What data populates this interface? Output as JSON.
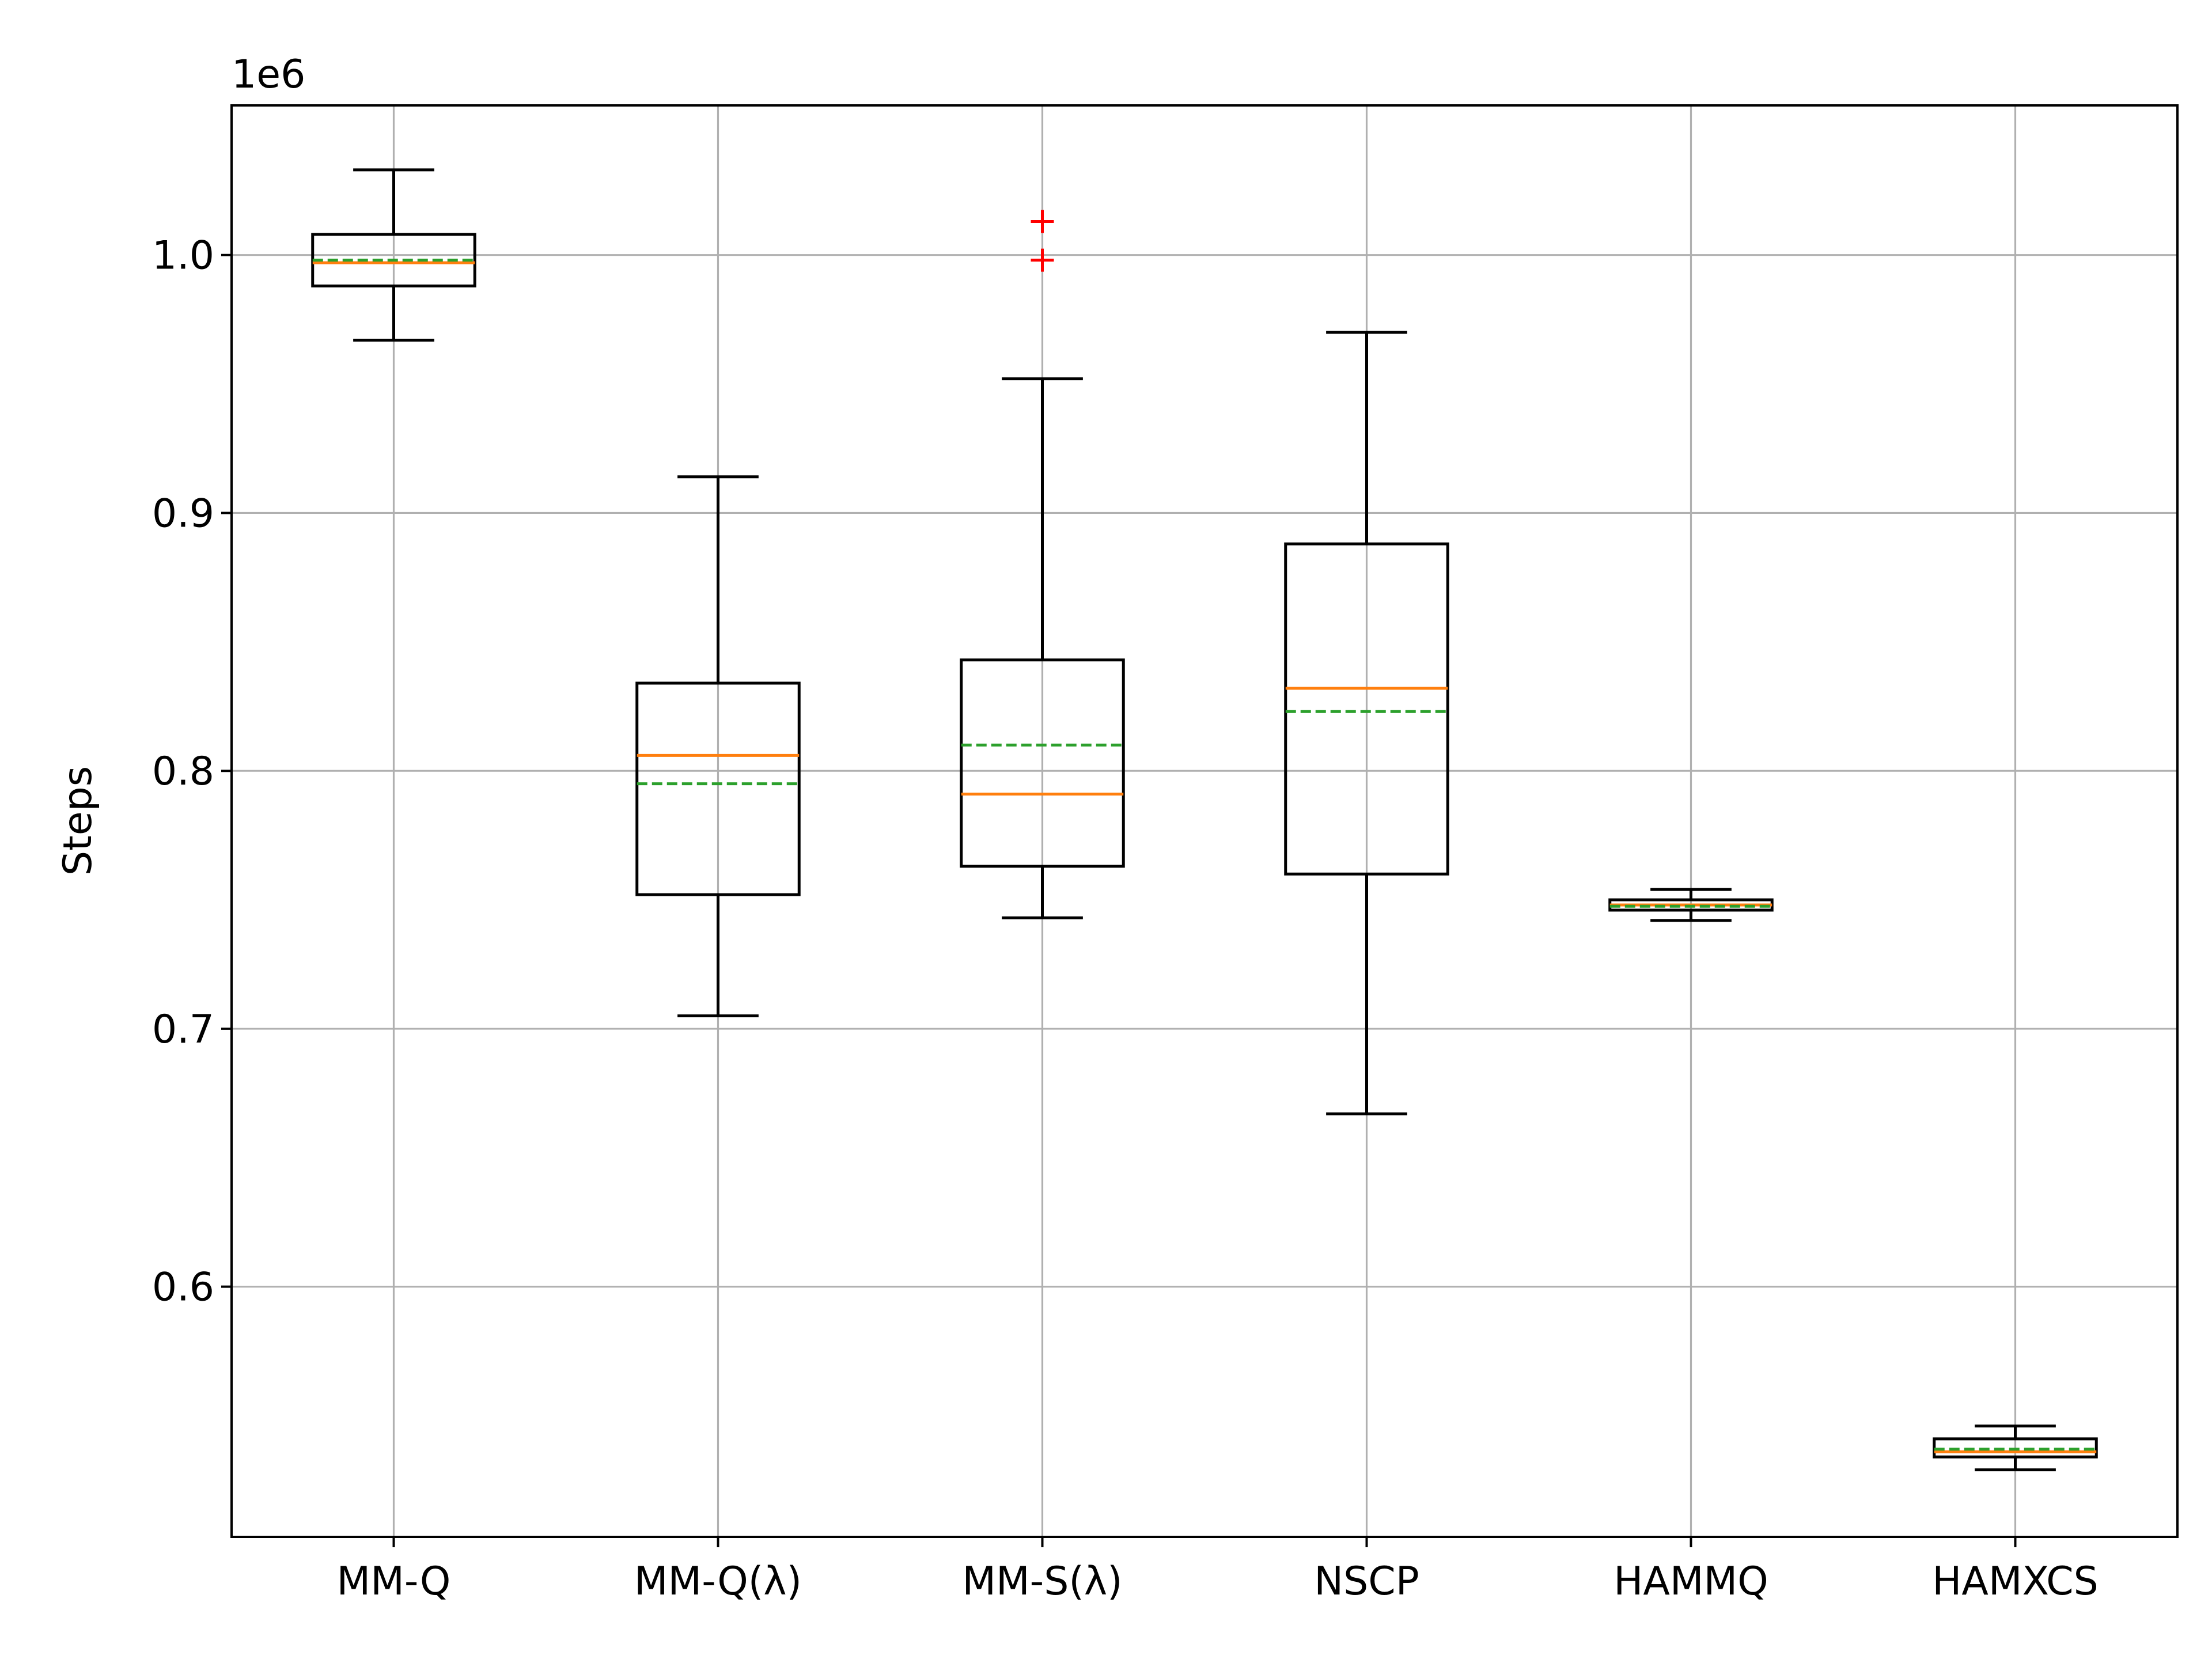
{
  "chart_data": {
    "type": "box",
    "title": "",
    "xlabel": "",
    "ylabel": "Steps",
    "offset_label": "1e6",
    "ylim": [
      503000,
      1058000
    ],
    "yticks": [
      600000,
      700000,
      800000,
      900000,
      1000000
    ],
    "ytick_labels": [
      "0.6",
      "0.7",
      "0.8",
      "0.9",
      "1.0"
    ],
    "grid": true,
    "categories": [
      "MM-Q",
      "MM-Q(λ)",
      "MM-S(λ)",
      "NSCP",
      "HAMMQ",
      "HAMXCS"
    ],
    "boxes": [
      {
        "label": "MM-Q",
        "whisker_low": 967000,
        "q1": 988000,
        "median": 997000,
        "mean": 998000,
        "q3": 1008000,
        "whisker_high": 1033000,
        "outliers": []
      },
      {
        "label": "MM-Q(λ)",
        "whisker_low": 705000,
        "q1": 752000,
        "median": 806000,
        "mean": 795000,
        "q3": 834000,
        "whisker_high": 914000,
        "outliers": []
      },
      {
        "label": "MM-S(λ)",
        "whisker_low": 743000,
        "q1": 763000,
        "median": 791000,
        "mean": 810000,
        "q3": 843000,
        "whisker_high": 952000,
        "outliers": [
          998000,
          1013000
        ]
      },
      {
        "label": "NSCP",
        "whisker_low": 667000,
        "q1": 760000,
        "median": 832000,
        "mean": 823000,
        "q3": 888000,
        "whisker_high": 970000,
        "outliers": []
      },
      {
        "label": "HAMMQ",
        "whisker_low": 742000,
        "q1": 746000,
        "median": 748000,
        "mean": 747500,
        "q3": 750000,
        "whisker_high": 754000,
        "outliers": []
      },
      {
        "label": "HAMXCS",
        "whisker_low": 529000,
        "q1": 534000,
        "median": 536000,
        "mean": 537000,
        "q3": 541000,
        "whisker_high": 546000,
        "outliers": []
      }
    ],
    "colors": {
      "box": "#000000",
      "median": "#ff7f0e",
      "mean": "#2ca02c",
      "outlier": "#ff0000",
      "grid": "#b0b0b0"
    }
  }
}
